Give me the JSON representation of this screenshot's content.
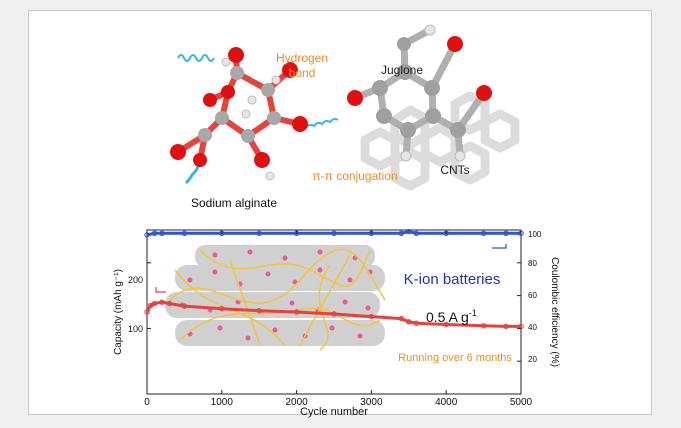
{
  "scheme": {
    "labels": {
      "hydrogen_bond_line1": "Hydrogen",
      "hydrogen_bond_line2": "bond",
      "juglone": "Juglone",
      "conjugation": "π-π conjugation",
      "cnts": "CNTs",
      "sodium_alginate": "Sodium alginate"
    },
    "colors": {
      "orange_label": "#f08c1e",
      "bond_red": "#e8423c",
      "carbon_grey": "#a0a0a0",
      "oxygen_red": "#e01010",
      "spring_cyan": "#34b8e8"
    }
  },
  "chart_data": {
    "type": "line",
    "xlabel": "Cycle number",
    "ylabel_left": "Capacity (mAh g⁻¹)",
    "ylabel_right": "Coulombic efficiency (%)",
    "xlim": [
      0,
      5000
    ],
    "xticks": [
      "0",
      "1000",
      "2000",
      "3000",
      "4000",
      "5000"
    ],
    "yticks_left": [
      "100",
      "200"
    ],
    "yticks_right": [
      "20",
      "40",
      "60",
      "80",
      "100"
    ],
    "ylim_left": [
      0,
      250
    ],
    "ylim_right": [
      0,
      100
    ],
    "annotations": {
      "title": "K-ion batteries",
      "rate": "0.5 A g",
      "rate_superscript": "-1",
      "duration": "Running over 6 months"
    },
    "series": [
      {
        "color": "#3050e0",
        "axis": "right",
        "x": [
          0,
          100,
          200,
          500,
          1000,
          1500,
          2000,
          2500,
          3000,
          3400,
          3500,
          3600,
          4000,
          4500,
          4800,
          5000
        ],
        "values": [
          97,
          98,
          98,
          98,
          98,
          98,
          98,
          98,
          98,
          98,
          99,
          98,
          98,
          98,
          98,
          98
        ]
      },
      {
        "color": "#e84040",
        "axis": "left",
        "x": [
          0,
          50,
          100,
          200,
          300,
          500,
          1000,
          1500,
          2000,
          2500,
          3000,
          3400,
          3500,
          3600,
          4000,
          4500,
          4800,
          5000
        ],
        "values": [
          125,
          135,
          138,
          140,
          138,
          134,
          130,
          127,
          125,
          122,
          118,
          115,
          110,
          108,
          106,
          104,
          103,
          103
        ]
      }
    ]
  }
}
